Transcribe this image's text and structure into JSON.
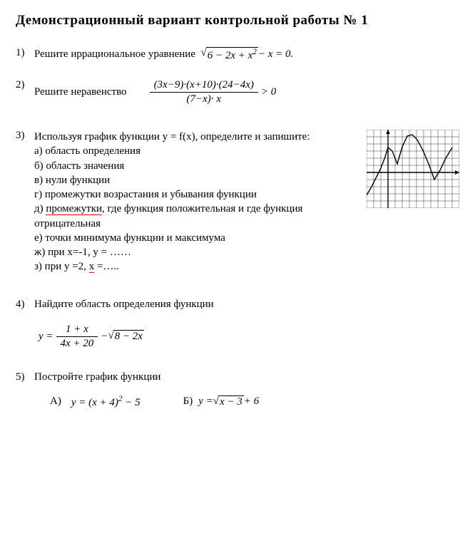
{
  "title": "Демонстрационный  вариант  контрольной  работы  № 1",
  "p1": {
    "num": "1)",
    "intro": "Решите иррациональное  уравнение",
    "sqrt_arg": "6 − 2x + x",
    "sqrt_exp": "2",
    "tail": " − x = 0."
  },
  "p2": {
    "num": "2)",
    "intro": "Решите  неравенство",
    "frac_top": "(3x−9)·(x+10)·(24−4x)",
    "frac_bot": "(7−x)· x",
    "tail": "> 0"
  },
  "p3": {
    "num": "3)",
    "intro": "Используя график функции  y = f(x), определите  и запишите:",
    "items": {
      "a": "а)   область определения",
      "b": "б)   область значения",
      "v": "в)    нули функции",
      "g": "г)    промежутки возрастания   и убывания функции",
      "d_pre": "д)   ",
      "d_word": "промежутки",
      "d_post": ", где функция положительная  и где функция отрицательная",
      "e": "е)   точки  минимума функции и максимума",
      "zh": "ж)   при  x=-1,  y = ……",
      "z_pre": "з)    при  y =2,  ",
      "z_word": "x",
      "z_post": " =….."
    },
    "graph": {
      "grid_color": "#000000",
      "bg": "#ffffff",
      "cols": 13,
      "rows": 11,
      "cell": 10,
      "origin_col": 3,
      "origin_row": 6,
      "curve_points": [
        [
          -3,
          -3.2
        ],
        [
          -2.3,
          -2.0
        ],
        [
          -1.6,
          -0.6
        ],
        [
          -1.0,
          0.6
        ],
        [
          -0.4,
          2.2
        ],
        [
          0,
          3.5
        ],
        [
          0.6,
          3.0
        ],
        [
          1.3,
          1.2
        ],
        [
          2.0,
          3.6
        ],
        [
          2.7,
          5.1
        ],
        [
          3.4,
          5.3
        ],
        [
          4.1,
          4.6
        ],
        [
          4.9,
          3.1
        ],
        [
          5.7,
          1.2
        ],
        [
          6.5,
          -1.0
        ],
        [
          7.3,
          0.3
        ],
        [
          8.1,
          2.0
        ],
        [
          9.0,
          3.5
        ]
      ],
      "stroke": "#000000",
      "stroke_width": 1.4
    }
  },
  "p4": {
    "num": "4)",
    "intro": "Найдите  область определения функции",
    "lhs": "y =",
    "frac_top": "1 + x",
    "frac_bot": "4x + 20",
    "minus": " − ",
    "sqrt_arg": "8 − 2x"
  },
  "p5": {
    "num": "5)",
    "intro": "Постройте  график функции",
    "A_label": "А)",
    "A_expr_pre": "y = (x + 4)",
    "A_exp": "2",
    "A_expr_post": " − 5",
    "B_label": "Б)",
    "B_lhs": "y = ",
    "B_sqrt_arg": "x − 3",
    "B_tail": " + 6"
  }
}
